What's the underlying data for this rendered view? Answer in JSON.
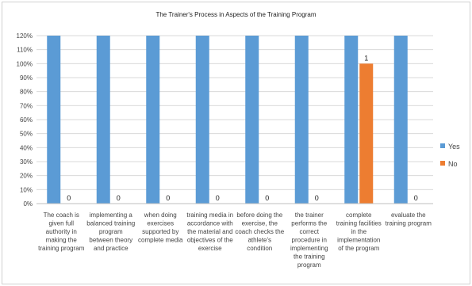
{
  "chart_data": {
    "type": "bar",
    "title": "The Trainer's Process in Aspects of the Training Program",
    "categories": [
      [
        "The coach is",
        "given full",
        "authority in",
        "making the",
        "training program"
      ],
      [
        "implementing a",
        "balanced training",
        "program",
        "between theory",
        "and practice"
      ],
      [
        "when doing",
        "exercises",
        "supported by",
        "complete media"
      ],
      [
        "training media in",
        "accordance with",
        "the material and",
        "objectives of the",
        "exercise"
      ],
      [
        "before doing the",
        "exercise, the",
        "coach checks the",
        "athlete's",
        "condition"
      ],
      [
        "the trainer",
        "performs the",
        "correct",
        "procedure in",
        "implementing",
        "the training",
        "program"
      ],
      [
        "complete",
        "training facilities",
        "in the",
        "implementation",
        "of the program"
      ],
      [
        "evaluate the",
        "training program"
      ]
    ],
    "series": [
      {
        "name": "Yes",
        "color": "#5b9bd5",
        "values": [
          1.2,
          1.2,
          1.2,
          1.2,
          1.2,
          1.2,
          1.2,
          1.2
        ],
        "labels": [
          "",
          "",
          "",
          "",
          "",
          "",
          "",
          ""
        ]
      },
      {
        "name": "No",
        "color": "#ed7d31",
        "values": [
          0,
          0,
          0,
          0,
          0,
          0,
          1.0,
          0
        ],
        "labels": [
          "0",
          "0",
          "0",
          "0",
          "0",
          "0",
          "1",
          "0"
        ]
      }
    ],
    "yticks": [
      "0%",
      "10%",
      "20%",
      "30%",
      "40%",
      "50%",
      "60%",
      "70%",
      "80%",
      "90%",
      "100%",
      "110%",
      "120%"
    ],
    "ylim": [
      0,
      1.2
    ],
    "grid": true,
    "legend": "right"
  }
}
